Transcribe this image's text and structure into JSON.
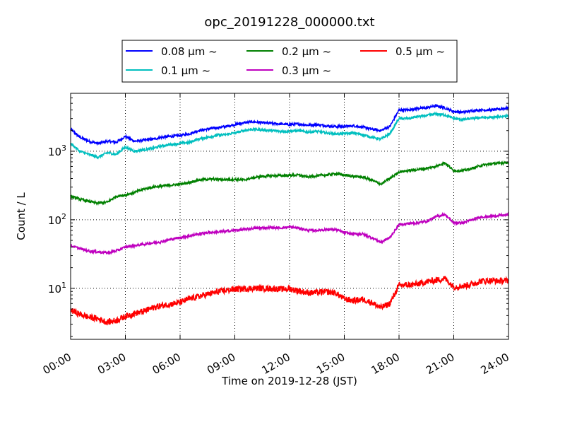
{
  "chart_data": {
    "type": "line",
    "title": "opc_20191228_000000.txt",
    "xlabel": "Time on 2019-12-28 (JST)",
    "ylabel": "Count / L",
    "xlim": [
      0,
      24
    ],
    "ylim": [
      1.8,
      7000
    ],
    "yscale": "log",
    "grid": true,
    "legend_position": "top",
    "x_tick_labels": [
      "00:00",
      "03:00",
      "06:00",
      "09:00",
      "12:00",
      "15:00",
      "18:00",
      "21:00",
      "24:00"
    ],
    "y_tick_labels": [
      {
        "value": 10,
        "base": "10",
        "exp": "1"
      },
      {
        "value": 100,
        "base": "10",
        "exp": "2"
      },
      {
        "value": 1000,
        "base": "10",
        "exp": "3"
      }
    ],
    "x": [
      0,
      0.5,
      1,
      1.5,
      2,
      2.5,
      3,
      3.5,
      4,
      4.5,
      5,
      5.5,
      6,
      6.5,
      7,
      7.5,
      8,
      8.5,
      9,
      9.5,
      10,
      10.5,
      11,
      11.5,
      12,
      12.5,
      13,
      13.5,
      14,
      14.5,
      15,
      15.5,
      16,
      16.5,
      17,
      17.5,
      18,
      18.5,
      19,
      19.5,
      20,
      20.5,
      21,
      21.5,
      22,
      22.5,
      23,
      23.5,
      24
    ],
    "series": [
      {
        "name": "0.08 µm ~",
        "color": "#0000ff",
        "values": [
          2100,
          1600,
          1400,
          1300,
          1400,
          1350,
          1650,
          1400,
          1450,
          1500,
          1600,
          1650,
          1700,
          1800,
          2000,
          2100,
          2200,
          2300,
          2450,
          2600,
          2700,
          2600,
          2550,
          2500,
          2450,
          2500,
          2400,
          2450,
          2350,
          2300,
          2300,
          2350,
          2250,
          2100,
          2000,
          2300,
          4000,
          4000,
          4200,
          4300,
          4600,
          4300,
          3800,
          3700,
          3900,
          4000,
          4000,
          4100,
          4300
        ]
      },
      {
        "name": "0.1 µm ~",
        "color": "#00bfbf",
        "values": [
          1300,
          1000,
          900,
          820,
          950,
          900,
          1150,
          1000,
          1050,
          1100,
          1200,
          1250,
          1300,
          1350,
          1500,
          1600,
          1700,
          1750,
          1850,
          2000,
          2100,
          2050,
          2000,
          1950,
          1950,
          2000,
          1900,
          1950,
          1850,
          1800,
          1800,
          1850,
          1750,
          1600,
          1500,
          1800,
          3000,
          3000,
          3200,
          3300,
          3500,
          3400,
          3000,
          2900,
          3000,
          3100,
          3100,
          3200,
          3300
        ]
      },
      {
        "name": "0.2 µm ~",
        "color": "#008000",
        "values": [
          220,
          200,
          185,
          175,
          180,
          220,
          230,
          250,
          280,
          300,
          310,
          320,
          330,
          350,
          380,
          390,
          390,
          385,
          390,
          380,
          410,
          430,
          440,
          440,
          445,
          450,
          420,
          440,
          450,
          470,
          450,
          430,
          420,
          380,
          330,
          400,
          500,
          520,
          540,
          560,
          600,
          680,
          520,
          520,
          560,
          620,
          650,
          670,
          690
        ]
      },
      {
        "name": "0.3 µm ~",
        "color": "#bf00bf",
        "values": [
          42,
          38,
          35,
          34,
          33,
          35,
          40,
          42,
          44,
          46,
          48,
          52,
          55,
          58,
          62,
          65,
          66,
          68,
          70,
          72,
          75,
          76,
          77,
          76,
          78,
          76,
          70,
          70,
          72,
          72,
          65,
          62,
          62,
          55,
          47,
          55,
          85,
          88,
          90,
          95,
          110,
          120,
          90,
          90,
          100,
          110,
          112,
          115,
          118
        ]
      },
      {
        "name": "0.5 µm ~",
        "color": "#ff0000",
        "values": [
          4.8,
          4.2,
          3.8,
          3.6,
          3.2,
          3.4,
          3.9,
          4.3,
          4.6,
          5.2,
          5.6,
          5.9,
          6.2,
          7.0,
          7.6,
          8.2,
          8.8,
          9.3,
          9.7,
          9.8,
          10.0,
          10.0,
          9.9,
          9.7,
          9.8,
          9.2,
          8.6,
          8.7,
          8.9,
          8.6,
          7.0,
          6.6,
          6.9,
          6.2,
          5.2,
          6.0,
          11.0,
          11.2,
          11.5,
          12.5,
          13.0,
          14.0,
          10.5,
          10.8,
          11.5,
          12.8,
          13.0,
          12.8,
          13.0
        ]
      }
    ]
  }
}
